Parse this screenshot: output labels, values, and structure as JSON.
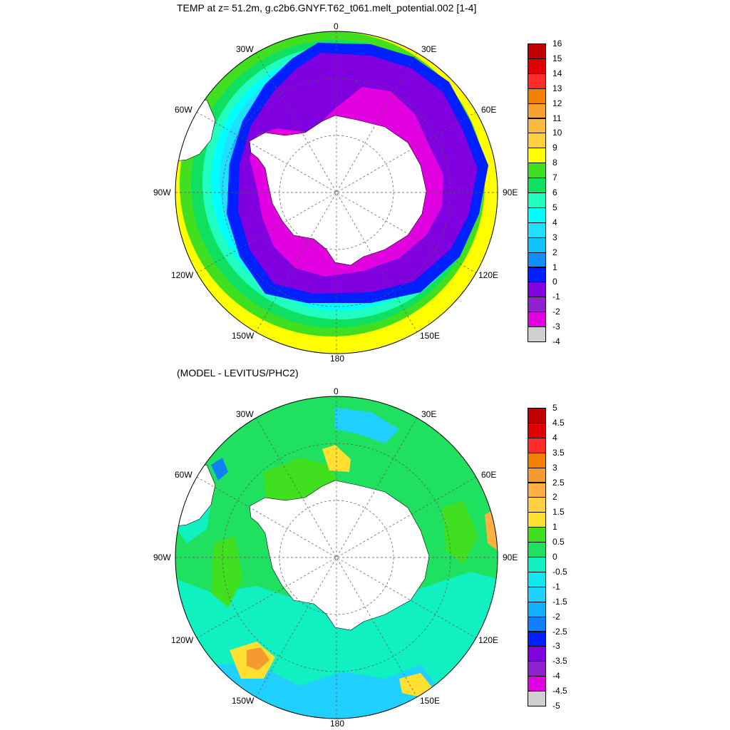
{
  "titles": {
    "top": "TEMP at z=  51.2m, g.c2b6.GNYF.T62_t061.melt_potential.002 [1-4]",
    "bottom": "(MODEL - LEVITUS/PHC2)"
  },
  "longitude_labels": [
    "0",
    "30E",
    "60E",
    "90E",
    "120E",
    "150E",
    "180",
    "150W",
    "120W",
    "90W",
    "60W",
    "30W"
  ],
  "map_top": {
    "projection": "south-polar-stereographic",
    "field": "TEMP",
    "depth": "51.2m",
    "land_color": "#ffffff",
    "colorbar": {
      "labels": [
        "16",
        "15",
        "14",
        "13",
        "12",
        "11",
        "10",
        "9",
        "8",
        "7",
        "6",
        "5",
        "4",
        "3",
        "2",
        "1",
        "0",
        "-1",
        "-2",
        "-3",
        "-4"
      ],
      "colors": [
        "#c00000",
        "#e00000",
        "#ff2a2a",
        "#f28000",
        "#f5a030",
        "#ffb840",
        "#ffd040",
        "#ffff00",
        "#40e020",
        "#10e060",
        "#20ffc0",
        "#00ffff",
        "#20e0ff",
        "#10c0ff",
        "#1090ff",
        "#0020ff",
        "#8000e0",
        "#9020d0",
        "#e000e0",
        "#d0d0d0",
        "#707070"
      ]
    }
  },
  "map_bottom": {
    "projection": "south-polar-stereographic",
    "field": "MODEL - LEVITUS/PHC2",
    "land_color": "#ffffff",
    "colorbar": {
      "labels": [
        "5",
        "4.5",
        "4",
        "3.5",
        "3",
        "2.5",
        "2",
        "1.5",
        "1",
        "0.5",
        "0",
        "-0.5",
        "-1",
        "-1.5",
        "-2",
        "-2.5",
        "-3",
        "-3.5",
        "-4",
        "-4.5",
        "-5"
      ],
      "colors": [
        "#c00000",
        "#e00000",
        "#ff2a2a",
        "#f28000",
        "#f59a30",
        "#ffb040",
        "#ffd040",
        "#ffe030",
        "#40e020",
        "#20e060",
        "#10f0c0",
        "#10e8f0",
        "#20d0ff",
        "#10b0ff",
        "#1080ff",
        "#0020ff",
        "#8000e0",
        "#9020d0",
        "#e000e0",
        "#d0d0d0",
        "#707070"
      ]
    }
  }
}
